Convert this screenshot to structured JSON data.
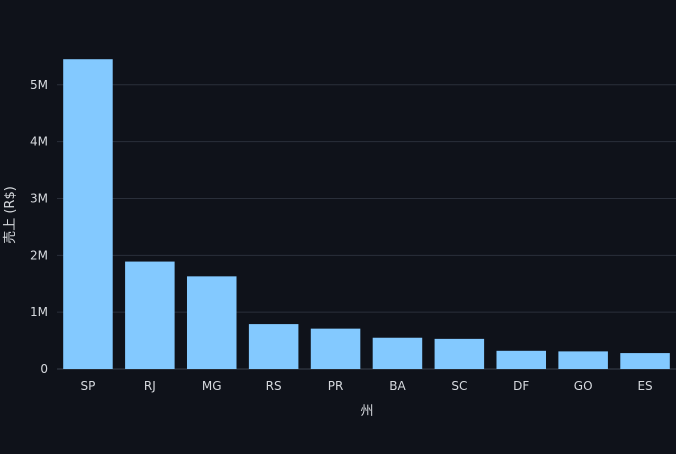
{
  "chart_data": {
    "type": "bar",
    "title": "",
    "xlabel": "州",
    "ylabel": "売上 (R$)",
    "categories": [
      "SP",
      "RJ",
      "MG",
      "RS",
      "PR",
      "BA",
      "SC",
      "DF",
      "GO",
      "ES"
    ],
    "values": [
      5450000,
      1890000,
      1630000,
      790000,
      710000,
      550000,
      530000,
      320000,
      310000,
      280000
    ],
    "ylim": [
      0,
      5700000
    ],
    "yticks": [
      0,
      1000000,
      2000000,
      3000000,
      4000000,
      5000000
    ],
    "ytick_labels": [
      "0",
      "1M",
      "2M",
      "3M",
      "4M",
      "5M"
    ],
    "grid": true,
    "colors": {
      "bar": "#83c9ff",
      "background": "#0f121a",
      "grid": "#2a2f3a",
      "text": "#d6d9de"
    }
  }
}
